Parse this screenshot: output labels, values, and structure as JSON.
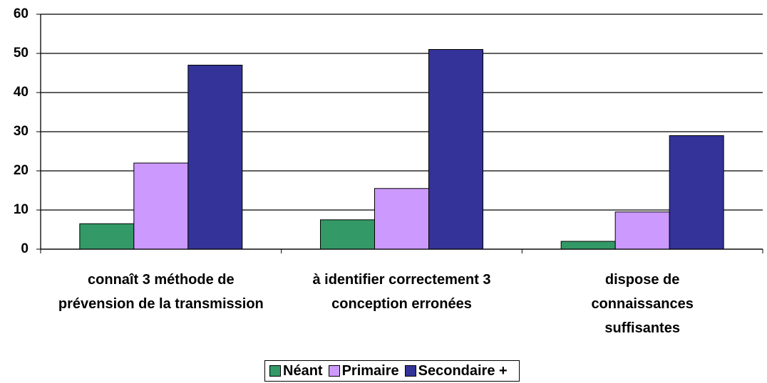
{
  "chart_data": {
    "type": "bar",
    "categories": [
      "connaît 3 méthode de prévension de la transmission",
      "à identifier correctement 3 conception erronées",
      "dispose de connaissances suffisantes"
    ],
    "series": [
      {
        "name": "Néant",
        "color": "#339966",
        "values": [
          6.5,
          7.5,
          2
        ]
      },
      {
        "name": "Primaire",
        "color": "#cc99ff",
        "values": [
          22,
          15.5,
          9.5
        ]
      },
      {
        "name": "Secondaire +",
        "color": "#333399",
        "values": [
          47,
          51,
          29
        ]
      }
    ],
    "ylim": [
      0,
      60
    ],
    "yticks": [
      0,
      10,
      20,
      30,
      40,
      50,
      60
    ],
    "grid": true,
    "legend": "bottom"
  }
}
